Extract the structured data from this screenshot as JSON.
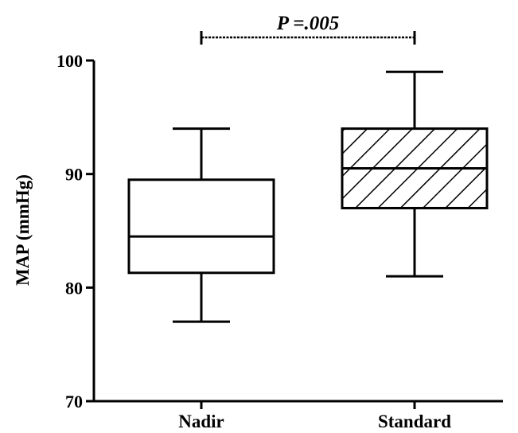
{
  "chart_data": {
    "type": "box",
    "title": "",
    "xlabel": "",
    "ylabel": "MAP (mmHg)",
    "ylim": [
      70,
      100
    ],
    "yticks": [
      "70",
      "80",
      "90",
      "100"
    ],
    "categories": [
      "Nadir",
      "Standard"
    ],
    "boxes": [
      {
        "category": "Nadir",
        "min": 77,
        "q1": 81.3,
        "median": 84.5,
        "q3": 89.5,
        "max": 94,
        "fill": "none"
      },
      {
        "category": "Standard",
        "min": 81,
        "q1": 87,
        "median": 90.5,
        "q3": 94,
        "max": 99,
        "fill": "hatched"
      }
    ],
    "annotation": {
      "text": "P =.005",
      "between": [
        "Nadir",
        "Standard"
      ]
    },
    "grid": false,
    "legend": "none"
  },
  "colors": {
    "stroke": "#000000",
    "background": "#ffffff"
  }
}
